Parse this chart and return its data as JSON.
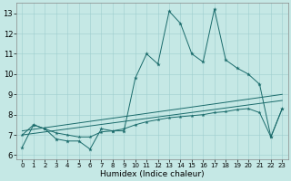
{
  "xlabel": "Humidex (Indice chaleur)",
  "xlim": [
    -0.5,
    23.5
  ],
  "ylim": [
    5.8,
    13.5
  ],
  "yticks": [
    6,
    7,
    8,
    9,
    10,
    11,
    12,
    13
  ],
  "xticks": [
    0,
    1,
    2,
    3,
    4,
    5,
    6,
    7,
    8,
    9,
    10,
    11,
    12,
    13,
    14,
    15,
    16,
    17,
    18,
    19,
    20,
    21,
    22,
    23
  ],
  "background_color": "#c5e8e5",
  "grid_color": "#9ecece",
  "line_color": "#1a6b6b",
  "line1_x": [
    0,
    1,
    2,
    3,
    4,
    5,
    6,
    7,
    8,
    9,
    10,
    11,
    12,
    13,
    14,
    15,
    16,
    17,
    18,
    19,
    20,
    21,
    22,
    23
  ],
  "line1_y": [
    6.4,
    7.5,
    7.3,
    6.8,
    6.7,
    6.7,
    6.3,
    7.3,
    7.2,
    7.2,
    9.8,
    11.0,
    10.5,
    13.1,
    12.5,
    11.0,
    10.6,
    13.2,
    10.7,
    10.3,
    10.0,
    9.5,
    6.9,
    8.3
  ],
  "line2_x": [
    0,
    1,
    2,
    3,
    4,
    5,
    6,
    7,
    8,
    9,
    10,
    11,
    12,
    13,
    14,
    15,
    16,
    17,
    18,
    19,
    20,
    21,
    22,
    23
  ],
  "line2_y": [
    7.0,
    7.5,
    7.3,
    7.1,
    7.0,
    6.9,
    6.9,
    7.15,
    7.2,
    7.3,
    7.5,
    7.65,
    7.75,
    7.85,
    7.9,
    7.95,
    8.0,
    8.1,
    8.15,
    8.25,
    8.3,
    8.1,
    6.9,
    8.3
  ],
  "line3_x": [
    0,
    23
  ],
  "line3_y": [
    7.0,
    8.7
  ],
  "line4_x": [
    0,
    23
  ],
  "line4_y": [
    7.2,
    9.0
  ],
  "figsize": [
    3.2,
    2.0
  ],
  "dpi": 100
}
